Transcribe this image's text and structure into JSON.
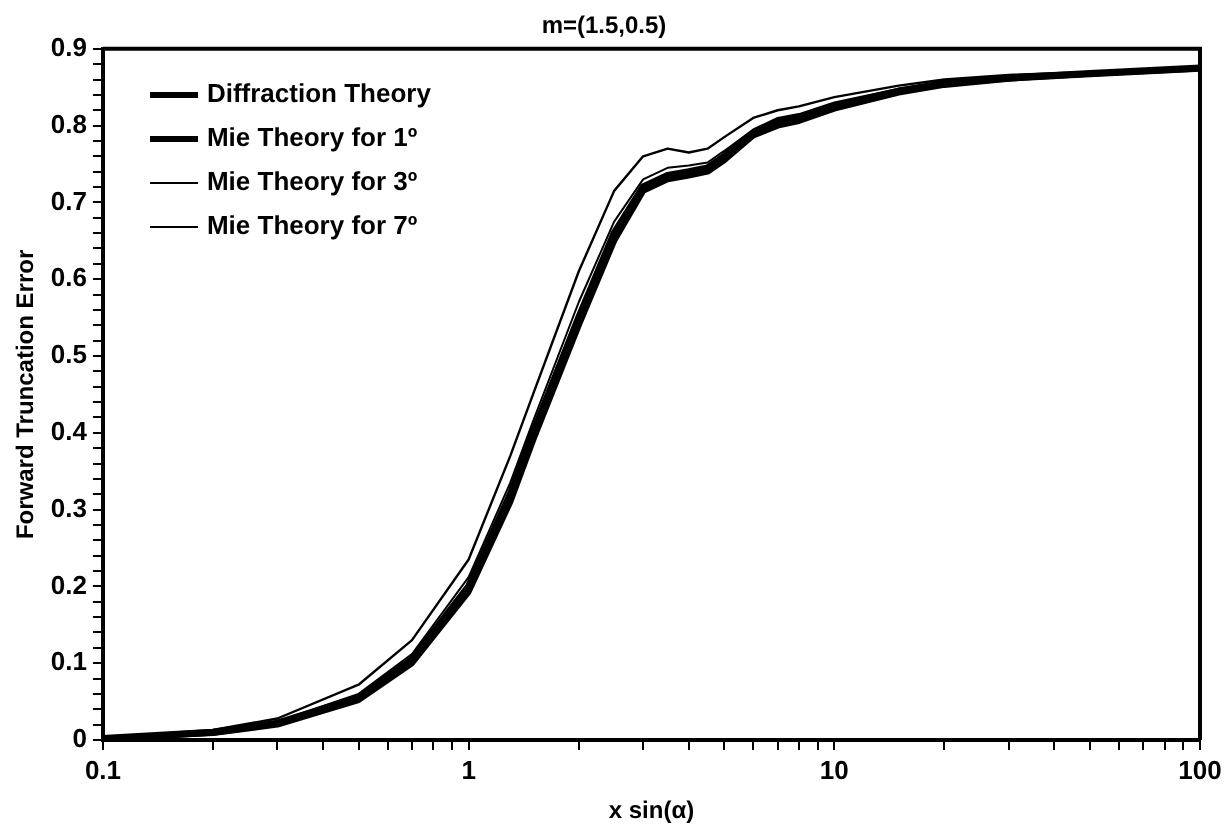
{
  "chart_data": {
    "type": "line",
    "title": "m=(1.5,0.5)",
    "xlabel": "x sin(α)",
    "ylabel": "Forward Truncation Error",
    "log": "x",
    "legend": "top left",
    "grid": false,
    "marker": "none",
    "line_style": "solid",
    "xlim": [
      0.1,
      100
    ],
    "ylim": [
      0,
      0.9
    ],
    "xticks": [
      0.1,
      {
        "value": 0.2,
        "label": null
      },
      {
        "value": 0.3,
        "label": null
      },
      {
        "value": 0.4,
        "label": null
      },
      {
        "value": 0.5,
        "label": null
      },
      {
        "value": 0.6,
        "label": null
      },
      {
        "value": 0.7,
        "label": null
      },
      {
        "value": 0.8,
        "label": null
      },
      {
        "value": 0.9,
        "label": null
      },
      1,
      {
        "value": 2,
        "label": null
      },
      {
        "value": 3,
        "label": null
      },
      {
        "value": 4,
        "label": null
      },
      {
        "value": 5,
        "label": null
      },
      {
        "value": 6,
        "label": null
      },
      {
        "value": 7,
        "label": null
      },
      {
        "value": 8,
        "label": null
      },
      {
        "value": 9,
        "label": null
      },
      10,
      {
        "value": 20,
        "label": null
      },
      {
        "value": 30,
        "label": null
      },
      {
        "value": 40,
        "label": null
      },
      {
        "value": 50,
        "label": null
      },
      {
        "value": 60,
        "label": null
      },
      {
        "value": 70,
        "label": null
      },
      {
        "value": 80,
        "label": null
      },
      {
        "value": 90,
        "label": null
      },
      100
    ],
    "yticks": [
      0,
      {
        "value": 0.02,
        "label": null
      },
      {
        "value": 0.04,
        "label": null
      },
      {
        "value": 0.06,
        "label": null
      },
      {
        "value": 0.08,
        "label": null
      },
      0.1,
      {
        "value": 0.12,
        "label": null
      },
      {
        "value": 0.14,
        "label": null
      },
      {
        "value": 0.16,
        "label": null
      },
      {
        "value": 0.18,
        "label": null
      },
      0.2,
      {
        "value": 0.22,
        "label": null
      },
      {
        "value": 0.24,
        "label": null
      },
      {
        "value": 0.26,
        "label": null
      },
      {
        "value": 0.28,
        "label": null
      },
      0.3,
      {
        "value": 0.32,
        "label": null
      },
      {
        "value": 0.34,
        "label": null
      },
      {
        "value": 0.36,
        "label": null
      },
      {
        "value": 0.38,
        "label": null
      },
      0.4,
      {
        "value": 0.42,
        "label": null
      },
      {
        "value": 0.44,
        "label": null
      },
      {
        "value": 0.46,
        "label": null
      },
      {
        "value": 0.48,
        "label": null
      },
      0.5,
      {
        "value": 0.52,
        "label": null
      },
      {
        "value": 0.54,
        "label": null
      },
      {
        "value": 0.56,
        "label": null
      },
      {
        "value": 0.58,
        "label": null
      },
      0.6,
      {
        "value": 0.62,
        "label": null
      },
      {
        "value": 0.64,
        "label": null
      },
      {
        "value": 0.66,
        "label": null
      },
      {
        "value": 0.68,
        "label": null
      },
      0.7,
      {
        "value": 0.72,
        "label": null
      },
      {
        "value": 0.74,
        "label": null
      },
      {
        "value": 0.76,
        "label": null
      },
      {
        "value": 0.78,
        "label": null
      },
      0.8,
      {
        "value": 0.82,
        "label": null
      },
      {
        "value": 0.84,
        "label": null
      },
      {
        "value": 0.86,
        "label": null
      },
      {
        "value": 0.88,
        "label": null
      },
      0.9
    ],
    "x": [
      0.1,
      0.2,
      0.3,
      0.5,
      0.7,
      1,
      1.3,
      1.5,
      2,
      2.5,
      3,
      3.5,
      4,
      4.5,
      5,
      6,
      7,
      8,
      10,
      15,
      20,
      30,
      50,
      100
    ],
    "series": [
      {
        "name": "Diffraction Theory",
        "color": "#000000",
        "values": [
          0.002,
          0.01,
          0.022,
          0.055,
          0.105,
          0.2,
          0.32,
          0.4,
          0.55,
          0.66,
          0.72,
          0.735,
          0.74,
          0.745,
          0.76,
          0.79,
          0.805,
          0.81,
          0.825,
          0.845,
          0.855,
          0.862,
          0.868,
          0.875
        ]
      },
      {
        "name": "Mie Theory for 1º",
        "color": "#000000",
        "values": [
          0.002,
          0.009,
          0.02,
          0.052,
          0.1,
          0.193,
          0.31,
          0.39,
          0.54,
          0.65,
          0.715,
          0.73,
          0.735,
          0.74,
          0.755,
          0.787,
          0.8,
          0.806,
          0.822,
          0.843,
          0.853,
          0.861,
          0.867,
          0.874
        ]
      },
      {
        "name": "Mie Theory for 3º",
        "color": "#000000",
        "values": [
          0.002,
          0.011,
          0.024,
          0.06,
          0.112,
          0.212,
          0.335,
          0.415,
          0.57,
          0.675,
          0.73,
          0.745,
          0.748,
          0.752,
          0.767,
          0.795,
          0.81,
          0.815,
          0.83,
          0.848,
          0.857,
          0.864,
          0.869,
          0.876
        ]
      },
      {
        "name": "Mie Theory for 7º",
        "color": "#000000",
        "values": [
          0.003,
          0.013,
          0.028,
          0.072,
          0.13,
          0.235,
          0.37,
          0.45,
          0.61,
          0.715,
          0.76,
          0.77,
          0.765,
          0.77,
          0.785,
          0.81,
          0.82,
          0.825,
          0.837,
          0.852,
          0.86,
          0.866,
          0.87,
          0.877
        ]
      }
    ]
  }
}
